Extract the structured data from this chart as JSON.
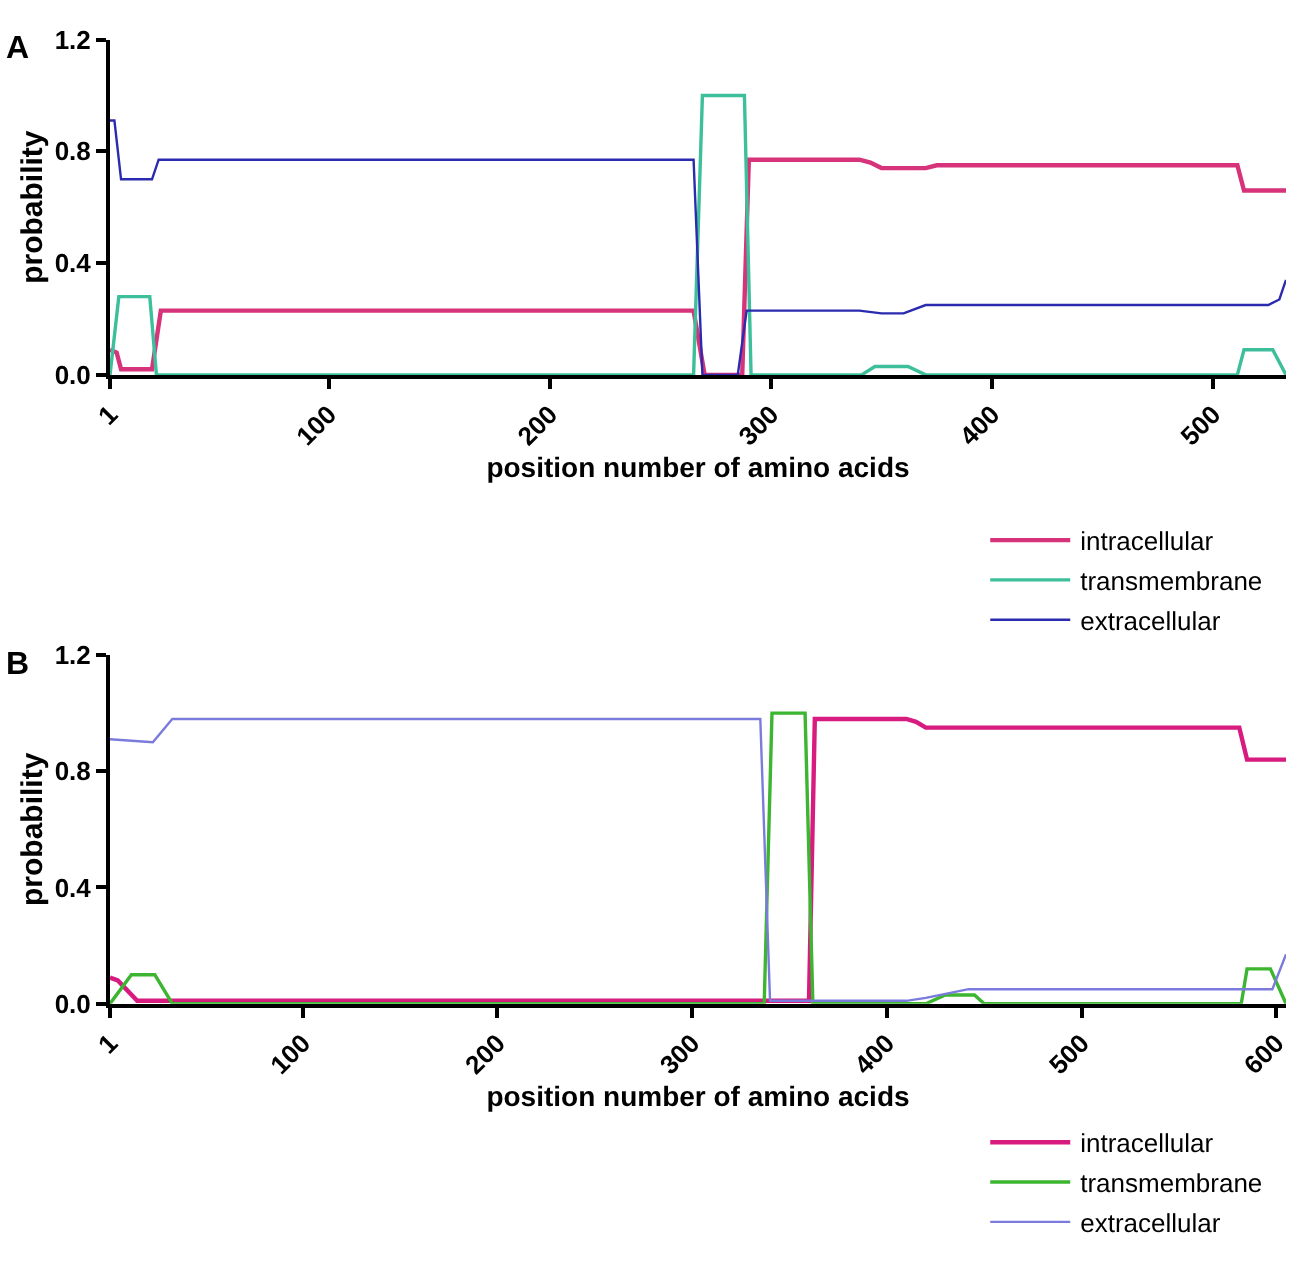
{
  "chart_data": [
    {
      "type": "line",
      "title": "A",
      "xlabel": "position number of amino acids",
      "ylabel": "probability",
      "xlim": [
        1,
        533
      ],
      "xticks": [
        1,
        100,
        200,
        300,
        400,
        500
      ],
      "ylim": [
        0,
        1.2
      ],
      "yticks": [
        {
          "value": 0,
          "label": "0.0"
        },
        0.4,
        0.8,
        1.2
      ],
      "legend": "bottom right",
      "line_style": "solid",
      "series": [
        {
          "name": "intracellular",
          "color": "#d6337a",
          "x": [
            1,
            4,
            6,
            20,
            24,
            265,
            270,
            287,
            290,
            340,
            345,
            350,
            370,
            375,
            511,
            514,
            533
          ],
          "values": [
            0.09,
            0.08,
            0.02,
            0.02,
            0.23,
            0.23,
            0,
            0,
            0.77,
            0.77,
            0.76,
            0.74,
            0.74,
            0.75,
            0.75,
            0.66,
            0.66
          ]
        },
        {
          "name": "transmembrane",
          "color": "#3cbf9a",
          "x": [
            1,
            5,
            19,
            22,
            265,
            269,
            288,
            291,
            341,
            347,
            362,
            370,
            511,
            514,
            527,
            533
          ],
          "values": [
            0,
            0.28,
            0.28,
            0,
            0,
            1,
            1,
            0,
            0,
            0.03,
            0.03,
            0,
            0,
            0.09,
            0.09,
            0
          ]
        },
        {
          "name": "extracellular",
          "color": "#2b2bb0",
          "x": [
            1,
            3,
            6,
            20,
            23,
            265,
            269,
            285,
            289,
            340,
            350,
            360,
            370,
            525,
            530,
            533
          ],
          "values": [
            0.91,
            0.91,
            0.7,
            0.7,
            0.77,
            0.77,
            0,
            0,
            0.23,
            0.23,
            0.22,
            0.22,
            0.25,
            0.25,
            0.27,
            0.34
          ]
        }
      ]
    },
    {
      "type": "line",
      "title": "B",
      "xlabel": "position number of amino acids",
      "ylabel": "probability",
      "xlim": [
        1,
        605
      ],
      "xticks": [
        1,
        100,
        200,
        300,
        400,
        500,
        600
      ],
      "ylim": [
        0,
        1.2
      ],
      "yticks": [
        {
          "value": 0,
          "label": "0.0"
        },
        0.4,
        0.8,
        1.2
      ],
      "legend": "bottom right",
      "line_style": "solid",
      "series": [
        {
          "name": "intracellular",
          "color": "#d81b7e",
          "x": [
            1,
            5,
            15,
            360,
            363,
            410,
            415,
            420,
            581,
            585,
            605
          ],
          "values": [
            0.09,
            0.08,
            0.01,
            0.01,
            0.98,
            0.98,
            0.97,
            0.95,
            0.95,
            0.84,
            0.84
          ]
        },
        {
          "name": "transmembrane",
          "color": "#3cb531",
          "x": [
            1,
            12,
            24,
            33,
            337,
            341,
            358,
            362,
            420,
            430,
            445,
            450,
            582,
            585,
            597,
            605
          ],
          "values": [
            0,
            0.1,
            0.1,
            0,
            0,
            1,
            1,
            0,
            0,
            0.03,
            0.03,
            0,
            0,
            0.12,
            0.12,
            0
          ]
        },
        {
          "name": "extracellular",
          "color": "#7b7bdd",
          "x": [
            1,
            23,
            33,
            335,
            340,
            410,
            420,
            442,
            598,
            605
          ],
          "values": [
            0.91,
            0.9,
            0.98,
            0.98,
            0.01,
            0.01,
            0.02,
            0.05,
            0.05,
            0.17
          ]
        }
      ]
    }
  ]
}
